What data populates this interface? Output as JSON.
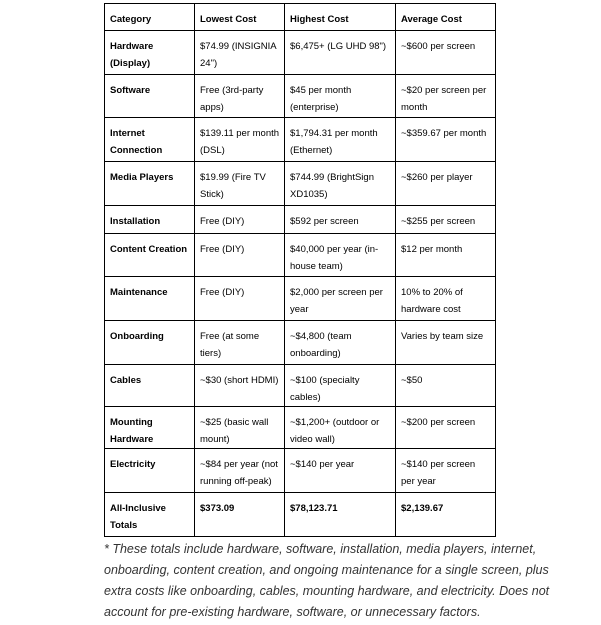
{
  "table": {
    "headers": [
      "Category",
      "Lowest Cost",
      "Highest Cost",
      "Average Cost"
    ],
    "rows": [
      [
        "Hardware (Display)",
        "$74.99 (INSIGNIA 24\")",
        "$6,475+ (LG UHD 98\")",
        "~$600 per screen"
      ],
      [
        "Software",
        "Free (3rd-party apps)",
        "$45 per month (enterprise)",
        "~$20 per screen per month"
      ],
      [
        "Internet Connection",
        "$139.11 per month (DSL)",
        "$1,794.31 per month (Ethernet)",
        "~$359.67 per month"
      ],
      [
        "Media Players",
        "$19.99 (Fire TV Stick)",
        "$744.99 (BrightSign XD1035)",
        "~$260 per player"
      ],
      [
        "Installation",
        "Free (DIY)",
        "$592 per screen",
        "~$255 per screen"
      ],
      [
        "Content Creation",
        "Free (DIY)",
        "$40,000 per year (in-house team)",
        "$12 per month"
      ],
      [
        "Maintenance",
        "Free (DIY)",
        "$2,000 per screen per year",
        "10% to 20% of hardware cost"
      ],
      [
        "Onboarding",
        "Free (at some tiers)",
        "~$4,800 (team onboarding)",
        "Varies by team size"
      ],
      [
        "Cables",
        "~$30 (short HDMI)",
        "~$100 (specialty cables)",
        "~$50"
      ],
      [
        "Mounting Hardware",
        "~$25 (basic wall mount)",
        "~$1,200+ (outdoor or video wall)",
        "~$200 per screen"
      ],
      [
        "Electricity",
        "~$84 per year (not running off-peak)",
        "~$140 per year",
        "~$140 per screen per year"
      ],
      [
        "All-Inclusive Totals",
        "$373.09",
        "$78,123.71",
        "$2,139.67"
      ]
    ]
  },
  "footnote": "* These totals include hardware, software, installation, media players, internet, onboarding, content creation, and ongoing maintenance for a single screen, plus extra costs like onboarding, cables, mounting hardware, and electricity. Does not account for pre-existing hardware, software, or unnecessary factors."
}
